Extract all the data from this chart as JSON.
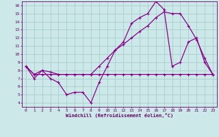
{
  "xlabel": "Windchill (Refroidissement éolien,°C)",
  "bg_color": "#cce8e8",
  "grid_color": "#aacccc",
  "line_color": "#880088",
  "xlim": [
    -0.5,
    23.5
  ],
  "ylim": [
    3.5,
    16.5
  ],
  "xticks": [
    0,
    1,
    2,
    3,
    4,
    5,
    6,
    7,
    8,
    9,
    10,
    11,
    12,
    13,
    14,
    15,
    16,
    17,
    18,
    19,
    20,
    21,
    22,
    23
  ],
  "yticks": [
    4,
    5,
    6,
    7,
    8,
    9,
    10,
    11,
    12,
    13,
    14,
    15,
    16
  ],
  "line1_x": [
    0,
    1,
    2,
    3,
    4,
    5,
    6,
    7,
    8,
    9,
    10,
    11,
    12,
    13,
    14,
    15,
    16,
    17,
    18,
    19,
    20,
    21,
    22,
    23
  ],
  "line1_y": [
    8.5,
    7.0,
    8.0,
    7.0,
    6.5,
    5.0,
    5.3,
    5.3,
    4.0,
    6.5,
    8.5,
    10.5,
    11.5,
    13.8,
    14.5,
    15.0,
    16.5,
    15.5,
    8.5,
    9.0,
    11.5,
    12.0,
    9.0,
    7.5
  ],
  "line2_x": [
    0,
    1,
    2,
    3,
    4,
    5,
    6,
    7,
    8,
    9,
    10,
    11,
    12,
    13,
    14,
    15,
    16,
    17,
    18,
    19,
    20,
    21,
    22,
    23
  ],
  "line2_y": [
    8.5,
    7.5,
    8.0,
    7.8,
    7.5,
    7.5,
    7.5,
    7.5,
    7.5,
    8.5,
    9.5,
    10.5,
    11.2,
    12.0,
    12.8,
    13.5,
    14.5,
    15.2,
    15.0,
    15.0,
    13.5,
    11.8,
    9.5,
    7.5
  ],
  "line3_x": [
    0,
    1,
    2,
    3,
    4,
    5,
    6,
    7,
    8,
    9,
    10,
    11,
    12,
    13,
    14,
    15,
    16,
    17,
    18,
    19,
    20,
    21,
    22,
    23
  ],
  "line3_y": [
    8.5,
    7.5,
    7.5,
    7.5,
    7.5,
    7.5,
    7.5,
    7.5,
    7.5,
    7.5,
    7.5,
    7.5,
    7.5,
    7.5,
    7.5,
    7.5,
    7.5,
    7.5,
    7.5,
    7.5,
    7.5,
    7.5,
    7.5,
    7.5
  ]
}
